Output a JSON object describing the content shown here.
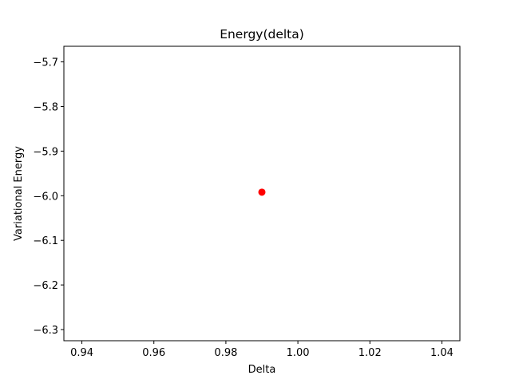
{
  "chart_data": {
    "type": "scatter",
    "title": "Energy(delta)",
    "xlabel": "Delta",
    "ylabel": "Variational Energy",
    "xlim": [
      0.935,
      1.045
    ],
    "ylim": [
      -6.325,
      -5.665
    ],
    "x_ticks": [
      0.94,
      0.96,
      0.98,
      1.0,
      1.02,
      1.04
    ],
    "x_tick_labels": [
      "0.94",
      "0.96",
      "0.98",
      "1.00",
      "1.02",
      "1.04"
    ],
    "y_ticks": [
      -5.7,
      -5.8,
      -5.9,
      -6.0,
      -6.1,
      -6.2,
      -6.3
    ],
    "y_tick_labels": [
      "−5.7",
      "−5.8",
      "−5.9",
      "−6.0",
      "−6.1",
      "−6.2",
      "−6.3"
    ],
    "grid": false,
    "series": [
      {
        "x": [
          0.99
        ],
        "y": [
          -5.992
        ],
        "color": "#ff0000",
        "marker": "circle"
      }
    ]
  }
}
